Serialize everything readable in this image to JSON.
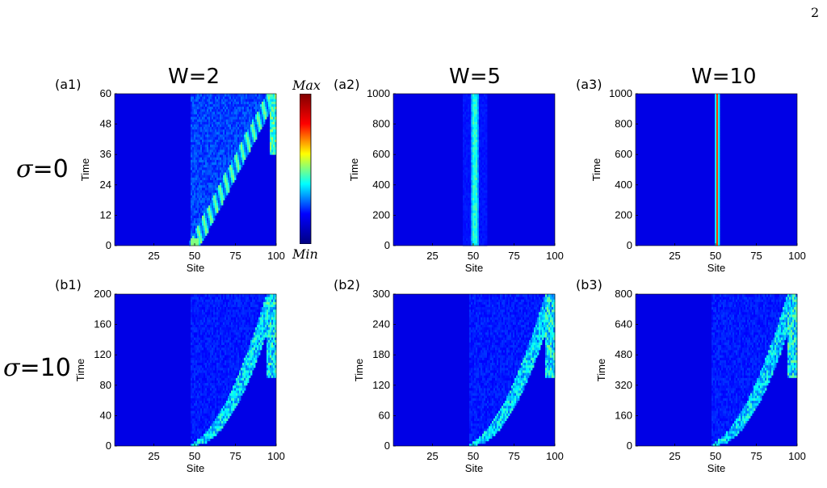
{
  "page_number": "2",
  "column_titles": [
    "W=2",
    "W=5",
    "W=10"
  ],
  "row_labels": {
    "top": {
      "symbol": "σ",
      "value": "=0"
    },
    "bottom": {
      "symbol": "σ",
      "value": "=10"
    }
  },
  "colorbar": {
    "max_label": "Max",
    "min_label": "Min",
    "colors": [
      "#000080",
      "#0000ff",
      "#00ffff",
      "#ffff00",
      "#ff0000",
      "#800000"
    ]
  },
  "chart_data": [
    {
      "id": "a1",
      "type": "heatmap",
      "panel_label": "(a1)",
      "xlabel": "Site",
      "ylabel": "Time",
      "x_ticks": [
        "25",
        "50",
        "75",
        "100"
      ],
      "y_ticks": [
        "0",
        "12",
        "24",
        "36",
        "48",
        "60"
      ],
      "xlim": [
        1,
        100
      ],
      "ylim": [
        0,
        60
      ],
      "pattern": "ballistic",
      "start_site": 50
    },
    {
      "id": "a2",
      "type": "heatmap",
      "panel_label": "(a2)",
      "xlabel": "Site",
      "ylabel": "Time",
      "x_ticks": [
        "25",
        "50",
        "75",
        "100"
      ],
      "y_ticks": [
        "0",
        "200",
        "400",
        "600",
        "800",
        "1000"
      ],
      "xlim": [
        1,
        100
      ],
      "ylim": [
        0,
        1000
      ],
      "pattern": "localized",
      "start_site": 50
    },
    {
      "id": "a3",
      "type": "heatmap",
      "panel_label": "(a3)",
      "xlabel": "Site",
      "ylabel": "Time",
      "x_ticks": [
        "25",
        "50",
        "75",
        "100"
      ],
      "y_ticks": [
        "0",
        "200",
        "400",
        "600",
        "800",
        "1000"
      ],
      "xlim": [
        1,
        100
      ],
      "ylim": [
        0,
        1000
      ],
      "pattern": "strongly-localized",
      "start_site": 50
    },
    {
      "id": "b1",
      "type": "heatmap",
      "panel_label": "(b1)",
      "xlabel": "Site",
      "ylabel": "Time",
      "x_ticks": [
        "25",
        "50",
        "75",
        "100"
      ],
      "y_ticks": [
        "0",
        "40",
        "80",
        "120",
        "160",
        "200"
      ],
      "xlim": [
        1,
        100
      ],
      "ylim": [
        0,
        200
      ],
      "pattern": "diffusive",
      "start_site": 50
    },
    {
      "id": "b2",
      "type": "heatmap",
      "panel_label": "(b2)",
      "xlabel": "Site",
      "ylabel": "Time",
      "x_ticks": [
        "25",
        "50",
        "75",
        "100"
      ],
      "y_ticks": [
        "0",
        "60",
        "120",
        "180",
        "240",
        "300"
      ],
      "xlim": [
        1,
        100
      ],
      "ylim": [
        0,
        300
      ],
      "pattern": "diffusive",
      "start_site": 50
    },
    {
      "id": "b3",
      "type": "heatmap",
      "panel_label": "(b3)",
      "xlabel": "Site",
      "ylabel": "Time",
      "x_ticks": [
        "25",
        "50",
        "75",
        "100"
      ],
      "y_ticks": [
        "0",
        "160",
        "320",
        "480",
        "640",
        "800"
      ],
      "xlim": [
        1,
        100
      ],
      "ylim": [
        0,
        800
      ],
      "pattern": "diffusive",
      "start_site": 50
    }
  ]
}
